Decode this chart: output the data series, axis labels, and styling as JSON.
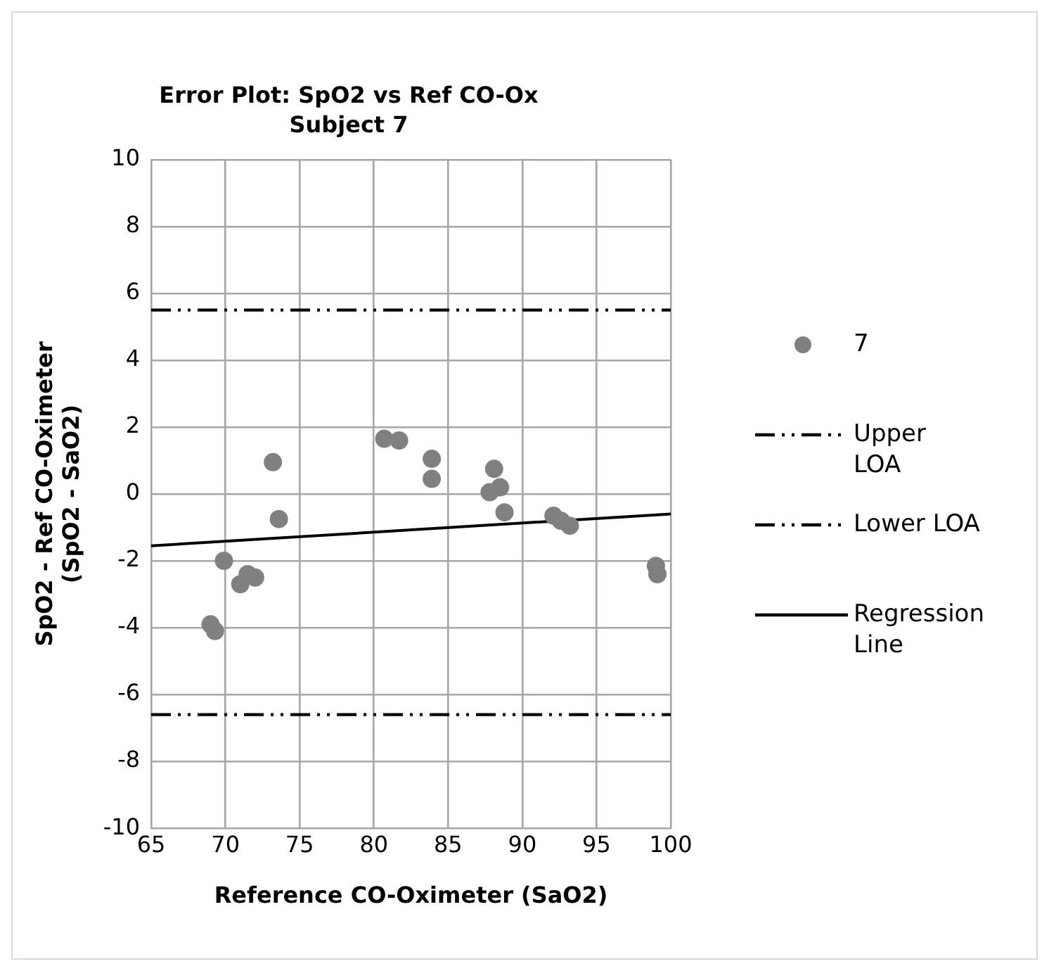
{
  "chart_data": {
    "type": "scatter",
    "title": "Error Plot: SpO2 vs Ref CO-Ox",
    "subtitle": "Subject 7",
    "xlabel": "Reference CO-Oximeter (SaO2)",
    "ylabel": "SpO2 - Ref CO-Oximeter\n(SpO2 - SaO2)",
    "xlim": [
      65,
      100
    ],
    "xticks": [
      65,
      70,
      75,
      80,
      85,
      90,
      95,
      100
    ],
    "ylim": [
      -10,
      10
    ],
    "yticks": [
      -10,
      -8,
      -6,
      -4,
      -2,
      0,
      2,
      4,
      6,
      8,
      10
    ],
    "grid": true,
    "legend": "right",
    "marker": "circle",
    "series": [
      {
        "name": "7",
        "color": "#808080",
        "x": [
          69,
          69.3,
          69.9,
          71,
          71.5,
          72,
          73.2,
          73.6,
          80.7,
          81.7,
          83.9,
          83.9,
          87.8,
          88.1,
          88.5,
          88.8,
          92.1,
          92.6,
          93.2,
          99,
          99.1
        ],
        "values": [
          -3.9,
          -4.1,
          -2,
          -2.7,
          -2.4,
          -2.5,
          0.95,
          -0.75,
          1.65,
          1.6,
          1.05,
          0.45,
          0.05,
          0.75,
          0.2,
          -0.55,
          -0.65,
          -0.8,
          -0.95,
          -2.15,
          -2.4
        ]
      },
      {
        "name": "Regression Line",
        "type": "line",
        "color": "#000000",
        "x": [
          65,
          100
        ],
        "values": [
          -1.55,
          -0.6
        ],
        "marker": "none",
        "line_style": "solid"
      }
    ],
    "ref_lines": [
      {
        "axis": "y",
        "value": 5.5,
        "label": "Upper LOA",
        "color": "#000000",
        "line_style": "dashed"
      },
      {
        "axis": "y",
        "value": -6.6,
        "label": "Lower LOA",
        "color": "#000000",
        "line_style": "dashed"
      }
    ]
  }
}
